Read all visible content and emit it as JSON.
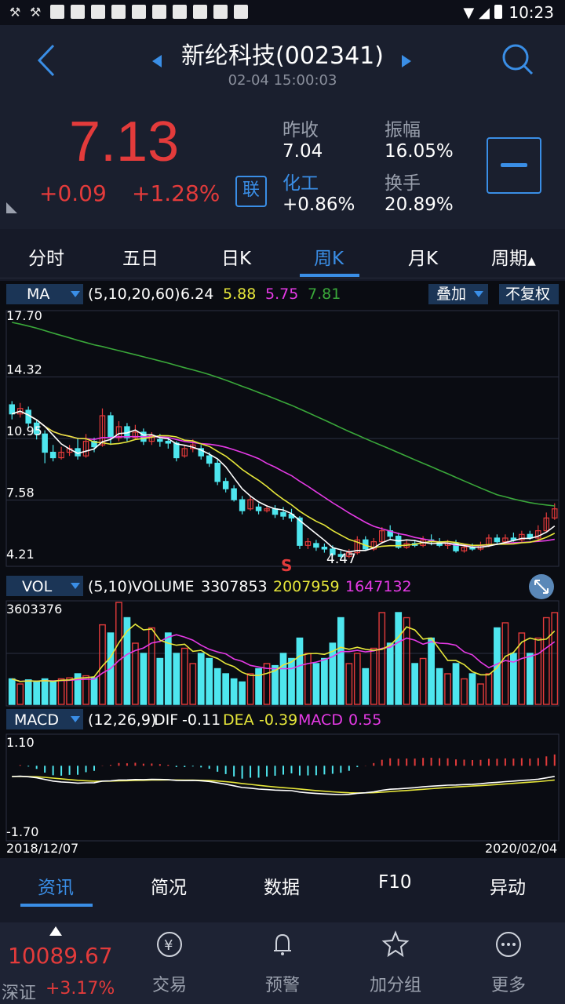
{
  "status_bar": {
    "time": "10:23"
  },
  "header": {
    "title": "新纶科技(002341)",
    "datetime": "02-04 15:00:03"
  },
  "quote": {
    "price": "7.13",
    "change": "+0.09",
    "change_pct": "+1.28%",
    "link_badge": "联",
    "prev_close_label": "昨收",
    "prev_close": "7.04",
    "amplitude_label": "振幅",
    "amplitude": "16.05%",
    "sector_label": "化工",
    "sector_change": "+0.86%",
    "turnover_label": "换手",
    "turnover": "20.89%"
  },
  "period_tabs": [
    "分时",
    "五日",
    "日K",
    "周K",
    "月K",
    "周期"
  ],
  "active_period": "周K",
  "ma_bar": {
    "selector": "MA",
    "params": "(5,10,20,60)",
    "ma5": "6.24",
    "ma10": "5.88",
    "ma20": "5.75",
    "ma60": "7.81",
    "overlay": "叠加",
    "adjust": "不复权"
  },
  "price_axis": [
    "17.70",
    "14.32",
    "10.95",
    "7.58",
    "4.21"
  ],
  "low_marker": "4.47",
  "signal_marker": "S",
  "vol_bar": {
    "selector": "VOL",
    "params": "(5,10)",
    "label": "VOLUME",
    "volume": "3307853",
    "ma5": "2007959",
    "ma10": "1647132"
  },
  "vol_axis_max": "3603376",
  "macd_bar": {
    "selector": "MACD",
    "params": "(12,26,9)",
    "dif_label": "DIF",
    "dif": "-0.11",
    "dea_label": "DEA",
    "dea": "-0.39",
    "macd_label": "MACD",
    "macd": "0.55"
  },
  "macd_axis": [
    "1.10",
    "-1.70"
  ],
  "date_range": {
    "start": "2018/12/07",
    "end": "2020/02/04"
  },
  "info_tabs": [
    "资讯",
    "简况",
    "数据",
    "F10",
    "异动"
  ],
  "active_info_tab": "资讯",
  "index_quote": {
    "value": "10089.67",
    "name": "深证",
    "change_pct": "+3.17%"
  },
  "nav": [
    "交易",
    "预警",
    "加分组",
    "更多"
  ],
  "colors": {
    "up": "#e33b3b",
    "down": "#4ee6ee",
    "accent": "#3a8ee6",
    "ma5": "#ffffff",
    "ma10": "#e6e63a",
    "ma20": "#e63ae6",
    "ma60": "#3aa83a"
  },
  "chart_data": {
    "type": "candlestick",
    "x_range": [
      "2018/12/07",
      "2020/02/04"
    ],
    "ylim": [
      4.21,
      17.7
    ],
    "candles": [
      [
        12.8,
        12.3,
        13.0,
        12.0
      ],
      [
        12.3,
        12.6,
        12.9,
        12.1
      ],
      [
        12.5,
        11.8,
        12.7,
        11.5
      ],
      [
        11.8,
        11.2,
        12.0,
        10.9
      ],
      [
        11.2,
        10.2,
        11.4,
        9.6
      ],
      [
        10.2,
        9.9,
        10.6,
        9.7
      ],
      [
        9.9,
        10.2,
        10.5,
        9.8
      ],
      [
        10.2,
        10.4,
        10.6,
        10.0
      ],
      [
        10.4,
        10.0,
        11.0,
        9.8
      ],
      [
        10.0,
        10.8,
        11.2,
        9.9
      ],
      [
        10.8,
        10.5,
        11.0,
        10.2
      ],
      [
        10.6,
        12.2,
        12.6,
        10.5
      ],
      [
        12.2,
        11.0,
        12.4,
        10.6
      ],
      [
        11.0,
        11.6,
        11.9,
        10.8
      ],
      [
        11.6,
        11.0,
        11.8,
        10.8
      ],
      [
        11.0,
        11.3,
        11.7,
        10.9
      ],
      [
        11.3,
        10.8,
        11.5,
        10.6
      ],
      [
        10.8,
        11.1,
        11.3,
        10.6
      ],
      [
        10.9,
        10.8,
        11.2,
        10.5
      ],
      [
        10.8,
        10.7,
        11.0,
        10.4
      ],
      [
        10.7,
        9.9,
        10.8,
        9.7
      ],
      [
        10.0,
        10.4,
        10.6,
        9.9
      ],
      [
        10.4,
        10.6,
        10.9,
        10.2
      ],
      [
        10.4,
        10.0,
        10.6,
        9.8
      ],
      [
        10.0,
        9.6,
        10.2,
        9.4
      ],
      [
        9.6,
        8.6,
        9.8,
        8.4
      ],
      [
        8.6,
        8.2,
        8.8,
        8.0
      ],
      [
        8.2,
        7.6,
        8.4,
        7.5
      ],
      [
        7.6,
        7.0,
        7.8,
        6.8
      ],
      [
        7.1,
        7.6,
        7.8,
        7.0
      ],
      [
        7.2,
        7.0,
        7.4,
        6.8
      ],
      [
        7.0,
        7.1,
        7.3,
        6.9
      ],
      [
        7.1,
        6.8,
        7.3,
        6.6
      ],
      [
        6.9,
        6.7,
        7.2,
        6.5
      ],
      [
        6.8,
        6.6,
        7.1,
        6.4
      ],
      [
        6.6,
        5.1,
        6.7,
        4.9
      ],
      [
        5.1,
        5.3,
        5.5,
        4.9
      ],
      [
        5.2,
        5.0,
        5.4,
        4.8
      ],
      [
        5.0,
        4.9,
        5.2,
        4.7
      ],
      [
        4.9,
        4.6,
        5.1,
        4.5
      ],
      [
        4.6,
        4.5,
        4.8,
        4.3
      ],
      [
        4.5,
        4.7,
        4.9,
        4.4
      ],
      [
        4.7,
        5.4,
        5.6,
        4.6
      ],
      [
        5.4,
        4.9,
        5.6,
        4.8
      ],
      [
        4.9,
        5.3,
        5.5,
        4.8
      ],
      [
        5.3,
        5.9,
        6.1,
        5.2
      ],
      [
        5.9,
        5.6,
        6.2,
        5.4
      ],
      [
        5.6,
        5.0,
        5.8,
        4.9
      ],
      [
        5.0,
        5.2,
        5.4,
        4.9
      ],
      [
        5.2,
        5.1,
        5.4,
        5.0
      ],
      [
        5.1,
        5.4,
        5.6,
        5.0
      ],
      [
        5.4,
        5.3,
        5.7,
        5.1
      ],
      [
        5.3,
        5.1,
        5.5,
        5.0
      ],
      [
        5.1,
        5.2,
        5.4,
        4.9
      ],
      [
        5.2,
        4.8,
        5.4,
        4.7
      ],
      [
        4.8,
        5.0,
        5.2,
        4.7
      ],
      [
        5.0,
        4.9,
        5.2,
        4.8
      ],
      [
        4.9,
        5.1,
        5.3,
        4.8
      ],
      [
        5.1,
        5.5,
        5.7,
        5.0
      ],
      [
        5.5,
        5.3,
        5.7,
        5.2
      ],
      [
        5.3,
        5.5,
        5.7,
        5.2
      ],
      [
        5.5,
        5.4,
        5.8,
        5.3
      ],
      [
        5.4,
        5.7,
        5.9,
        5.3
      ],
      [
        5.7,
        5.5,
        5.9,
        5.4
      ],
      [
        5.5,
        5.9,
        6.2,
        5.4
      ],
      [
        5.9,
        6.6,
        6.9,
        5.8
      ],
      [
        6.6,
        7.1,
        7.4,
        6.5
      ]
    ]
  }
}
